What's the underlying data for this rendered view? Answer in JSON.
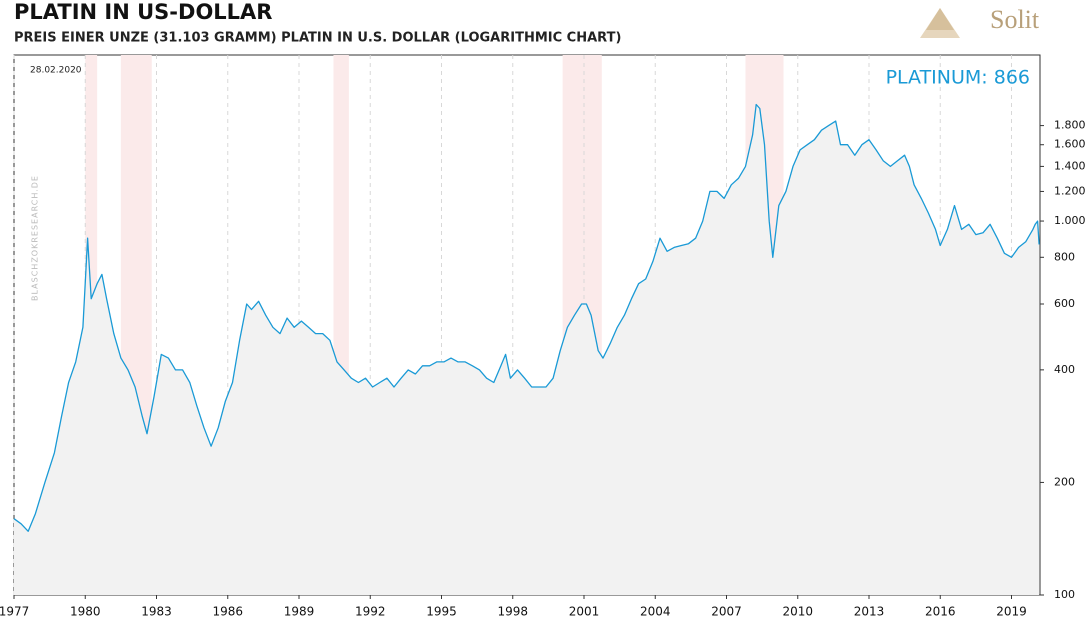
{
  "chart_data": {
    "type": "line",
    "title": "PLATIN IN US-DOLLAR",
    "subtitle": "PREIS EINER UNZE  (31.103 GRAMM)  PLATIN  IN  U.S. DOLLAR (LOGARITHMIC CHART)",
    "date_label": "28.02.2020",
    "annotation": "PLATINUM: 866",
    "watermark": "BLASCHZOKRESEARCH.DE",
    "logo": "Solit",
    "log_scale": true,
    "grid": true,
    "xlim": [
      1977,
      2020.2
    ],
    "xticks": [
      1977,
      1980,
      1983,
      1986,
      1989,
      1992,
      1995,
      1998,
      2001,
      2004,
      2007,
      2010,
      2013,
      2016,
      2019
    ],
    "ylim": [
      100,
      2780
    ],
    "yticks": [
      100,
      200,
      400,
      600,
      800,
      {
        "value": 1000,
        "label": "1.000"
      },
      {
        "value": 1200,
        "label": "1.200"
      },
      {
        "value": 1400,
        "label": "1.400"
      },
      {
        "value": 1600,
        "label": "1.600"
      },
      {
        "value": 1800,
        "label": "1.800"
      }
    ],
    "shaded_periods": [
      [
        1980.0,
        1980.5
      ],
      [
        1981.5,
        1982.8
      ],
      [
        1990.45,
        1991.1
      ],
      [
        2000.1,
        2001.75
      ],
      [
        2007.8,
        2009.4
      ]
    ],
    "shade_color": "#fbeaea",
    "x": [
      1977.0,
      1977.3,
      1977.6,
      1977.9,
      1978.3,
      1978.7,
      1979.0,
      1979.3,
      1979.6,
      1979.9,
      1980.1,
      1980.25,
      1980.5,
      1980.7,
      1980.9,
      1981.2,
      1981.5,
      1981.8,
      1982.1,
      1982.4,
      1982.6,
      1982.9,
      1983.2,
      1983.5,
      1983.8,
      1984.1,
      1984.4,
      1984.7,
      1985.0,
      1985.3,
      1985.6,
      1985.9,
      1986.2,
      1986.5,
      1986.8,
      1987.0,
      1987.3,
      1987.6,
      1987.9,
      1988.2,
      1988.5,
      1988.8,
      1989.1,
      1989.4,
      1989.7,
      1990.0,
      1990.3,
      1990.6,
      1990.9,
      1991.2,
      1991.5,
      1991.8,
      1992.1,
      1992.4,
      1992.7,
      1993.0,
      1993.3,
      1993.6,
      1993.9,
      1994.2,
      1994.5,
      1994.8,
      1995.1,
      1995.4,
      1995.7,
      1996.0,
      1996.3,
      1996.6,
      1996.9,
      1997.2,
      1997.5,
      1997.7,
      1997.9,
      1998.2,
      1998.5,
      1998.8,
      1999.1,
      1999.4,
      1999.7,
      2000.0,
      2000.3,
      2000.6,
      2000.9,
      2001.1,
      2001.3,
      2001.6,
      2001.8,
      2002.1,
      2002.4,
      2002.7,
      2003.0,
      2003.3,
      2003.6,
      2003.9,
      2004.2,
      2004.5,
      2004.8,
      2005.1,
      2005.4,
      2005.7,
      2006.0,
      2006.3,
      2006.6,
      2006.9,
      2007.2,
      2007.5,
      2007.8,
      2008.1,
      2008.25,
      2008.4,
      2008.6,
      2008.8,
      2008.95,
      2009.2,
      2009.5,
      2009.8,
      2010.1,
      2010.4,
      2010.7,
      2011.0,
      2011.3,
      2011.6,
      2011.8,
      2012.1,
      2012.4,
      2012.7,
      2013.0,
      2013.3,
      2013.6,
      2013.9,
      2014.2,
      2014.5,
      2014.7,
      2014.9,
      2015.2,
      2015.5,
      2015.8,
      2016.0,
      2016.3,
      2016.6,
      2016.9,
      2017.2,
      2017.5,
      2017.8,
      2018.1,
      2018.4,
      2018.7,
      2019.0,
      2019.3,
      2019.6,
      2019.9,
      2020.0,
      2020.1,
      2020.16
    ],
    "series": [
      {
        "color": "#1a9ad6",
        "fill": "#f2f2f2",
        "values": [
          160,
          155,
          148,
          165,
          200,
          240,
          300,
          370,
          420,
          520,
          900,
          620,
          680,
          720,
          620,
          500,
          430,
          400,
          360,
          300,
          270,
          340,
          440,
          430,
          400,
          400,
          370,
          320,
          280,
          250,
          280,
          330,
          370,
          480,
          600,
          580,
          610,
          560,
          520,
          500,
          550,
          520,
          540,
          520,
          500,
          500,
          480,
          420,
          400,
          380,
          370,
          380,
          360,
          370,
          380,
          360,
          380,
          400,
          390,
          410,
          410,
          420,
          420,
          430,
          420,
          420,
          410,
          400,
          380,
          370,
          410,
          440,
          380,
          400,
          380,
          360,
          360,
          360,
          380,
          450,
          520,
          560,
          600,
          600,
          560,
          450,
          430,
          470,
          520,
          560,
          620,
          680,
          700,
          780,
          900,
          830,
          850,
          860,
          870,
          900,
          1000,
          1200,
          1200,
          1150,
          1250,
          1300,
          1400,
          1700,
          2050,
          2000,
          1600,
          1000,
          800,
          1100,
          1200,
          1400,
          1550,
          1600,
          1650,
          1750,
          1800,
          1850,
          1600,
          1600,
          1500,
          1600,
          1650,
          1550,
          1450,
          1400,
          1450,
          1500,
          1400,
          1250,
          1150,
          1050,
          950,
          860,
          950,
          1100,
          950,
          980,
          920,
          930,
          980,
          900,
          820,
          800,
          850,
          880,
          950,
          980,
          1000,
          866
        ]
      }
    ]
  }
}
